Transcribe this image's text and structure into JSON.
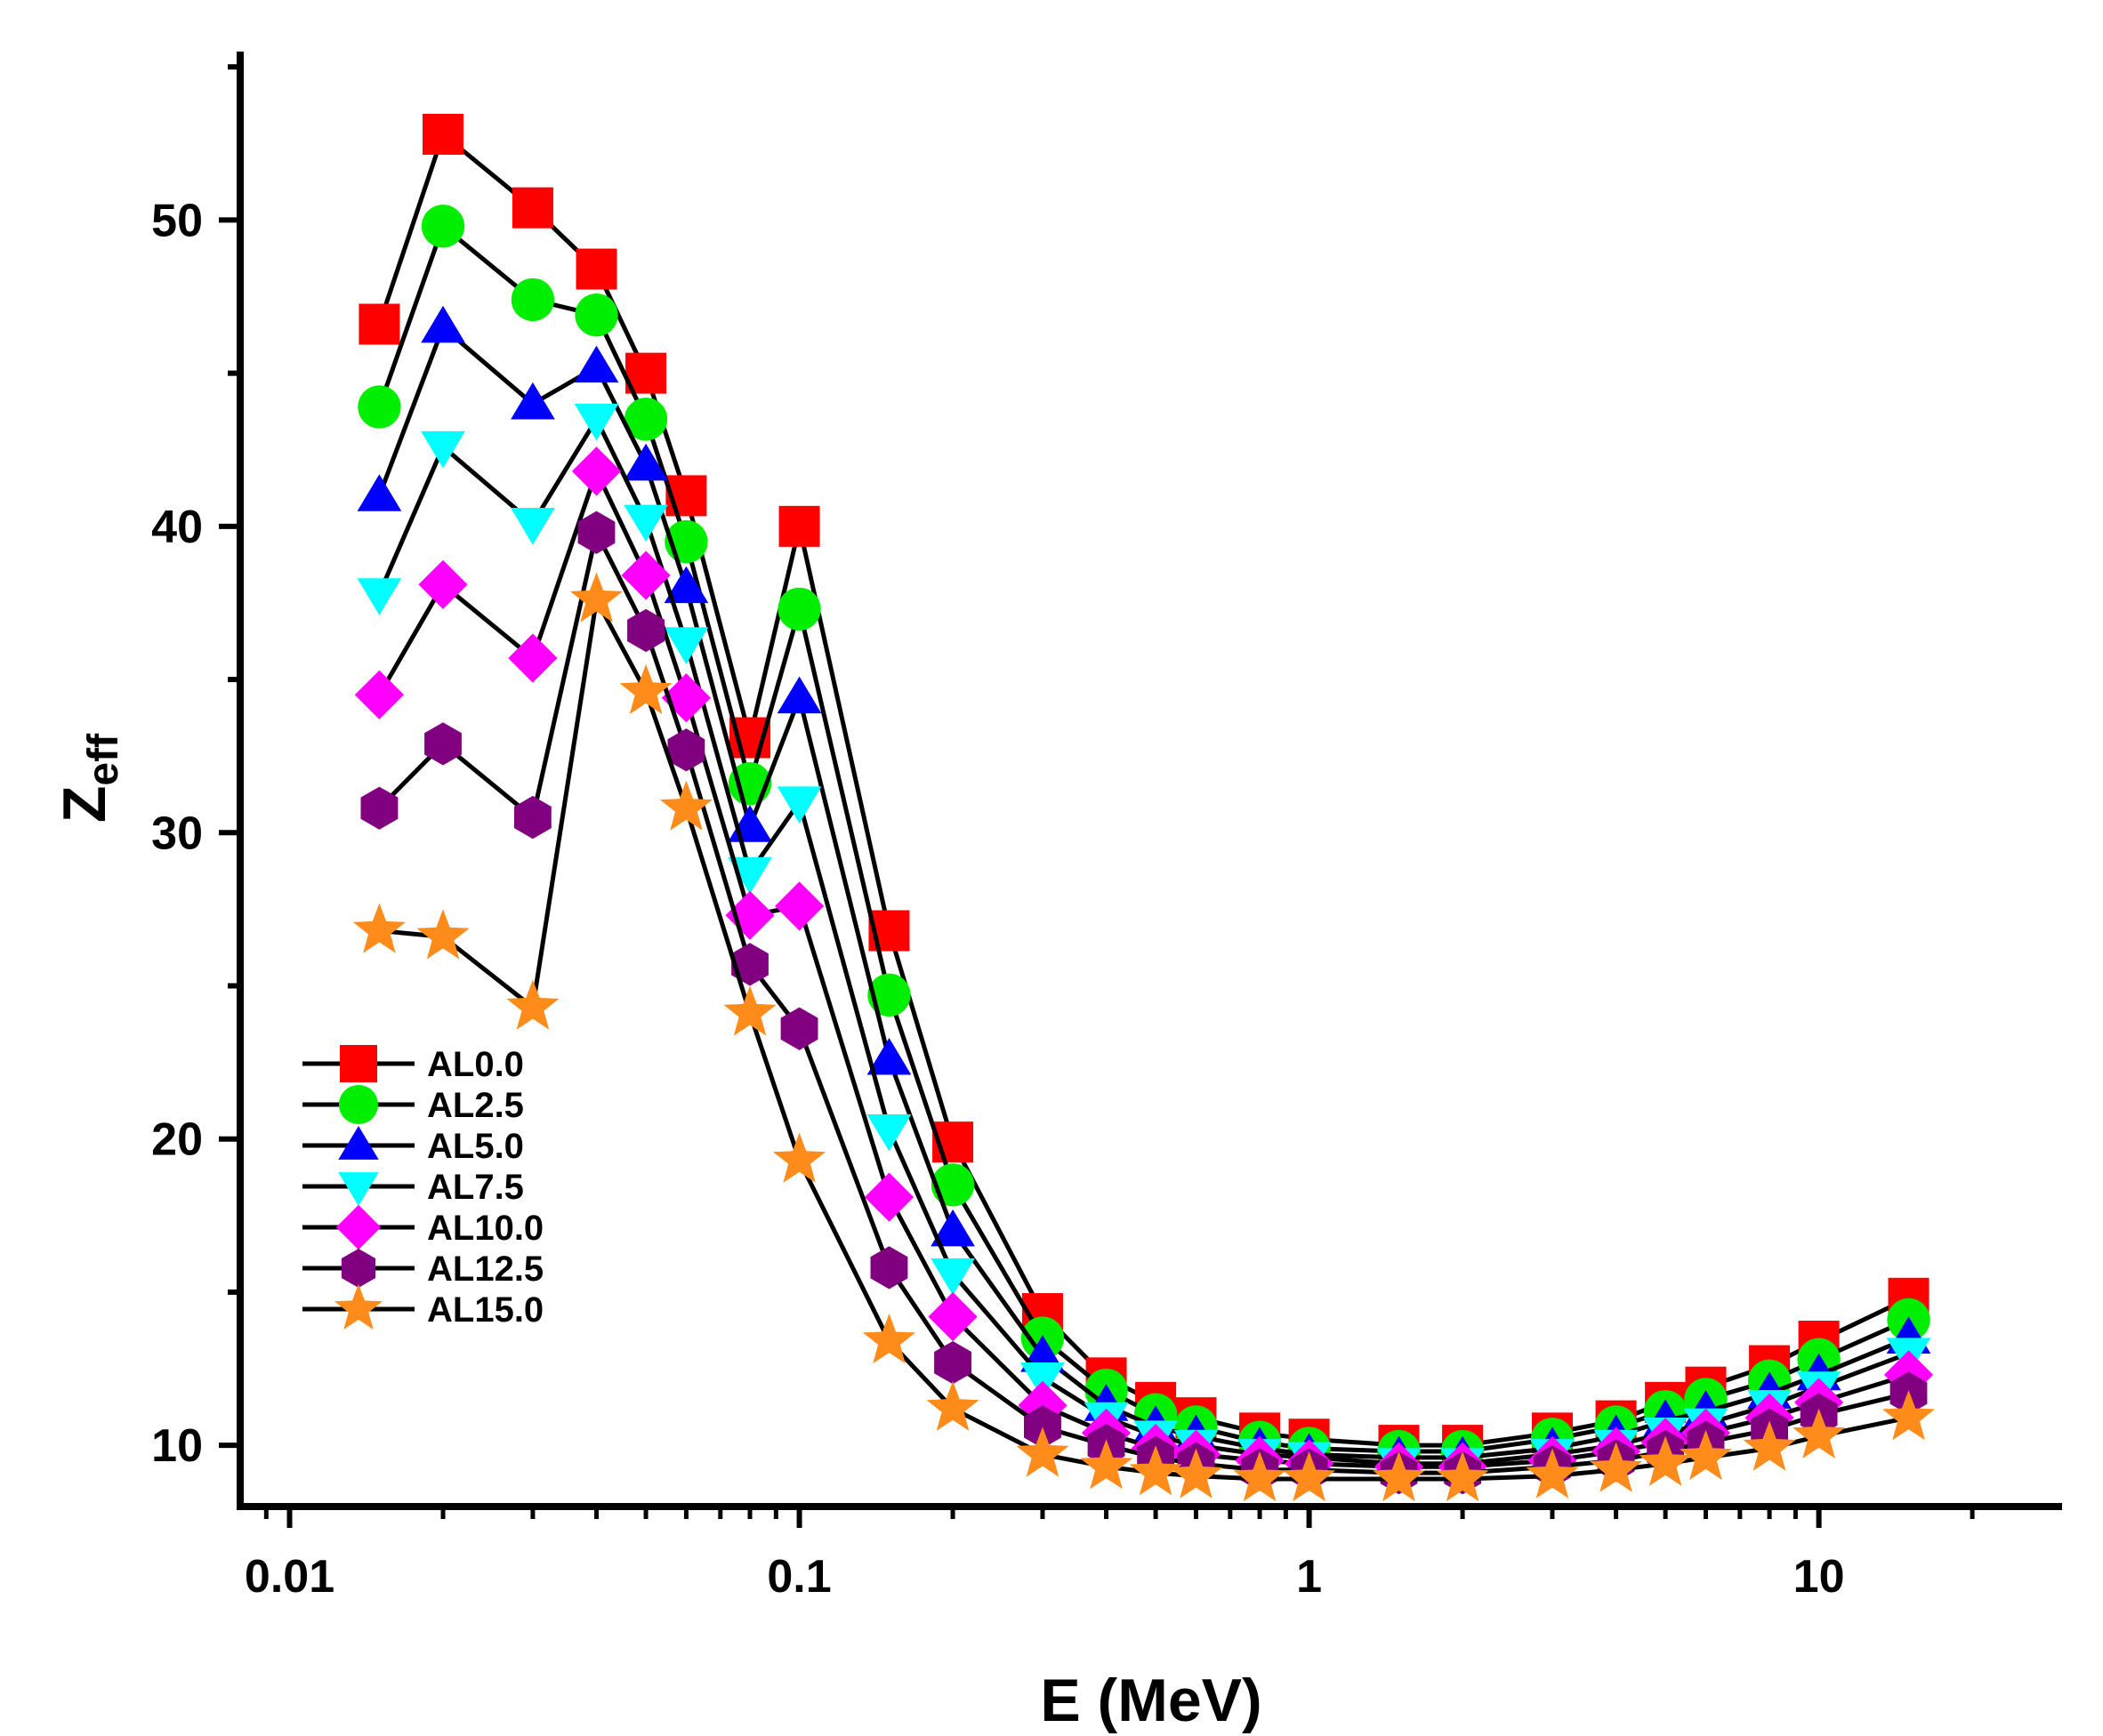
{
  "chart_data": {
    "type": "line",
    "title": "",
    "xlabel": "E (MeV)",
    "ylabel_main": "Z",
    "ylabel_sub": "eff",
    "xscale": "log",
    "xlim": [
      0.008,
      30
    ],
    "ylim": [
      8,
      55.5
    ],
    "grid": false,
    "legend_position": "bottom-left",
    "x_tick_labels": [
      "0.01",
      "0.1",
      "1",
      "10"
    ],
    "x_tick_values": [
      0.01,
      0.1,
      1,
      10
    ],
    "y_tick_labels": [
      "10",
      "20",
      "30",
      "40",
      "50"
    ],
    "y_tick_values": [
      10,
      20,
      30,
      40,
      50
    ],
    "x": [
      0.015,
      0.02,
      0.03,
      0.04,
      0.05,
      0.06,
      0.08,
      0.1,
      0.15,
      0.2,
      0.3,
      0.4,
      0.5,
      0.6,
      0.8,
      1,
      1.5,
      2,
      3,
      4,
      5,
      6,
      8,
      10,
      15
    ],
    "series": [
      {
        "name": "AL0.0",
        "marker": "square",
        "color": "#ff0000",
        "values": [
          46.6,
          52.8,
          50.4,
          48.4,
          45.0,
          41.0,
          33.1,
          40.0,
          26.8,
          19.9,
          14.3,
          12.2,
          11.4,
          10.9,
          10.4,
          10.2,
          10.0,
          10.0,
          10.4,
          10.8,
          11.4,
          11.9,
          12.6,
          13.4,
          14.8
        ]
      },
      {
        "name": "AL2.5",
        "marker": "circle",
        "color": "#00ee00",
        "values": [
          43.9,
          49.8,
          47.4,
          46.9,
          43.5,
          39.5,
          31.6,
          37.3,
          24.7,
          18.5,
          13.5,
          11.8,
          11.0,
          10.6,
          10.1,
          9.9,
          9.8,
          9.8,
          10.2,
          10.6,
          11.1,
          11.5,
          12.1,
          12.8,
          14.1
        ]
      },
      {
        "name": "AL5.0",
        "marker": "triangle-up",
        "color": "#0000ff",
        "values": [
          41.0,
          46.5,
          44.0,
          45.2,
          42.0,
          38.0,
          30.2,
          34.4,
          22.6,
          17.0,
          12.9,
          11.3,
          10.6,
          10.3,
          9.9,
          9.7,
          9.6,
          9.6,
          9.9,
          10.3,
          10.8,
          11.1,
          11.7,
          12.3,
          13.5
        ]
      },
      {
        "name": "AL7.5",
        "marker": "triangle-down",
        "color": "#00ffff",
        "values": [
          37.8,
          42.6,
          40.1,
          43.5,
          40.2,
          36.2,
          28.7,
          31.0,
          20.3,
          15.6,
          12.2,
          10.9,
          10.3,
          10.0,
          9.7,
          9.6,
          9.4,
          9.4,
          9.7,
          10.0,
          10.4,
          10.7,
          11.3,
          11.9,
          13.0
        ]
      },
      {
        "name": "AL10.0",
        "marker": "diamond",
        "color": "#ff00ff",
        "values": [
          34.5,
          38.1,
          35.7,
          41.8,
          38.4,
          34.4,
          27.3,
          27.6,
          18.1,
          14.2,
          11.3,
          10.4,
          9.9,
          9.7,
          9.5,
          9.4,
          9.3,
          9.3,
          9.5,
          9.8,
          10.1,
          10.4,
          10.9,
          11.4,
          12.3
        ]
      },
      {
        "name": "AL12.5",
        "marker": "hexagon",
        "color": "#800080",
        "values": [
          30.8,
          32.9,
          30.5,
          39.8,
          36.6,
          32.7,
          25.7,
          23.6,
          15.8,
          12.7,
          10.6,
          10.0,
          9.6,
          9.4,
          9.2,
          9.2,
          9.1,
          9.1,
          9.3,
          9.5,
          9.8,
          10.1,
          10.5,
          11.0,
          11.7
        ]
      },
      {
        "name": "AL15.0",
        "marker": "star",
        "color": "#ff8c1a",
        "values": [
          26.8,
          26.6,
          24.3,
          37.6,
          34.6,
          30.8,
          24.1,
          19.3,
          13.4,
          11.2,
          9.7,
          9.3,
          9.1,
          9.0,
          8.9,
          8.9,
          8.9,
          8.9,
          9.0,
          9.2,
          9.4,
          9.6,
          9.9,
          10.3,
          10.9
        ]
      }
    ]
  }
}
